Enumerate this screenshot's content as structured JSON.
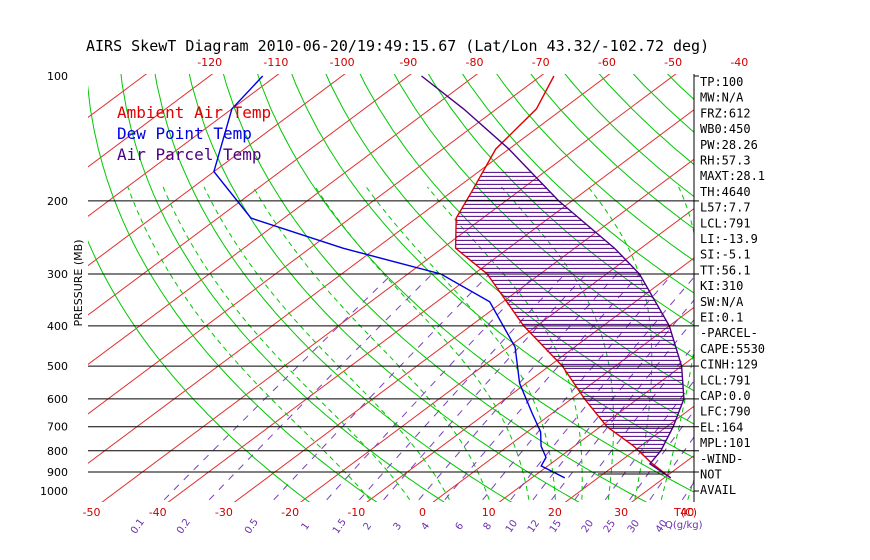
{
  "chart_data": {
    "type": "line",
    "title": "AIRS SkewT Diagram 2010-06-20/19:49:15.67 (Lat/Lon 43.32/-102.72 deg)",
    "ylabel": "PRESSURE (MB)",
    "xlabel": "T(C)",
    "mixing_label": "Q(g/kg)",
    "ylim": [
      1000,
      100
    ],
    "y_scale": "log",
    "pressure_ticks": [
      "100",
      "200",
      "300",
      "400",
      "500",
      "600",
      "700",
      "800",
      "900",
      "1000"
    ],
    "top_temp_ticks": [
      "-120",
      "-110",
      "-100",
      "-90",
      "-80",
      "-70",
      "-60",
      "-50",
      "-40"
    ],
    "bottom_temp_ticks": [
      "-50",
      "-40",
      "-30",
      "-20",
      "-10",
      "0",
      "10",
      "20",
      "30",
      "40"
    ],
    "mixing_ratio_ticks": [
      "0.1",
      "0.2",
      "0.5",
      "1",
      "1.5",
      "2",
      "3",
      "4",
      "6",
      "8",
      "10",
      "12",
      "15",
      "20",
      "25",
      "30",
      "40"
    ],
    "legend": [
      "Ambient Air Temp",
      "Dew Point Temp",
      "Air Parcel Temp"
    ],
    "series": [
      {
        "name": "Ambient Air Temp",
        "color": "#e00000",
        "points": [
          [
            930,
            31
          ],
          [
            855,
            25
          ],
          [
            780,
            19
          ],
          [
            700,
            11
          ],
          [
            600,
            2
          ],
          [
            500,
            -8
          ],
          [
            400,
            -22
          ],
          [
            300,
            -38
          ],
          [
            260,
            -48
          ],
          [
            220,
            -54
          ],
          [
            190,
            -57
          ],
          [
            150,
            -62
          ],
          [
            120,
            -64
          ],
          [
            100,
            -68
          ]
        ]
      },
      {
        "name": "Dew Point Temp",
        "color": "#0000e0",
        "points": [
          [
            930,
            15
          ],
          [
            870,
            9
          ],
          [
            830,
            8
          ],
          [
            780,
            5
          ],
          [
            720,
            2
          ],
          [
            650,
            -3
          ],
          [
            550,
            -11
          ],
          [
            450,
            -19
          ],
          [
            350,
            -32
          ],
          [
            300,
            -45
          ],
          [
            260,
            -65
          ],
          [
            220,
            -85
          ],
          [
            170,
            -100
          ],
          [
            120,
            -110
          ],
          [
            100,
            -112
          ]
        ]
      },
      {
        "name": "Air Parcel Temp",
        "color": "#4b0082",
        "points": [
          [
            930,
            31
          ],
          [
            860,
            25
          ],
          [
            800,
            24
          ],
          [
            700,
            21
          ],
          [
            600,
            17
          ],
          [
            500,
            10
          ],
          [
            400,
            0
          ],
          [
            300,
            -15
          ],
          [
            260,
            -24
          ],
          [
            200,
            -42
          ],
          [
            150,
            -60
          ],
          [
            120,
            -75
          ],
          [
            100,
            -88
          ]
        ]
      }
    ],
    "stats": [
      "TP:100",
      "MW:N/A",
      "FRZ:612",
      "WB0:450",
      "PW:28.26",
      "RH:57.3",
      "MAXT:28.1",
      "TH:4640",
      "L57:7.7",
      "LCL:791",
      "LI:-13.9",
      "SI:-5.1",
      "TT:56.1",
      "KI:310",
      "SW:N/A",
      "EI:0.1",
      "-PARCEL-",
      "CAPE:5530",
      "CINH:129",
      "LCL:791",
      "CAP:0.0",
      "LFC:790",
      "EL:164",
      "MPL:101",
      "-WIND-",
      "NOT",
      "AVAIL"
    ],
    "colors": {
      "isotherm": "#e03030",
      "dry_adiabat": "#00c800",
      "moist_adiabat": "#00c800",
      "mixing_ratio": "#7a3fc0",
      "isobar": "#000000",
      "hatch": "#4b0082",
      "axis_tick_text": "#d00000",
      "mixing_text": "#6a2fb0"
    }
  }
}
